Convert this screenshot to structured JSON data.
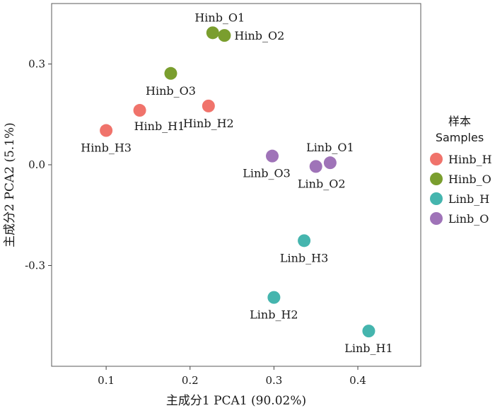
{
  "chart_data": {
    "type": "scatter",
    "title": "",
    "xlabel": "主成分1  PCA1 (90.02%)",
    "ylabel": "主成分2  PCA2 (5.1%)",
    "xlim": [
      0.035,
      0.475
    ],
    "ylim": [
      -0.6,
      0.48
    ],
    "xticks": [
      0.1,
      0.2,
      0.3,
      0.4
    ],
    "xtick_labels": [
      "0.1",
      "0.2",
      "0.3",
      "0.4"
    ],
    "yticks": [
      0.3,
      0.0,
      -0.3
    ],
    "ytick_labels": [
      "0.3",
      "0.0",
      "-0.3"
    ],
    "grid": false,
    "legend": {
      "position": "right",
      "title_line1": "样本",
      "title_line2": "Samples",
      "entries": [
        {
          "name": "Hinb_H",
          "color": "#F0736B"
        },
        {
          "name": "Hinb_O",
          "color": "#7A9E2E"
        },
        {
          "name": "Linb_H",
          "color": "#45B5AE"
        },
        {
          "name": "Linb_O",
          "color": "#9F73B8"
        }
      ]
    },
    "series": [
      {
        "name": "Hinb_H",
        "color": "#F0736B",
        "points": [
          {
            "label": "Hinb_H1",
            "x": 0.14,
            "y": 0.162,
            "label_pos": "below-right"
          },
          {
            "label": "Hinb_H2",
            "x": 0.222,
            "y": 0.175,
            "label_pos": "below"
          },
          {
            "label": "Hinb_H3",
            "x": 0.1,
            "y": 0.102,
            "label_pos": "below"
          }
        ]
      },
      {
        "name": "Hinb_O",
        "color": "#7A9E2E",
        "points": [
          {
            "label": "Hinb_O1",
            "x": 0.227,
            "y": 0.393,
            "label_pos": "above"
          },
          {
            "label": "Hinb_O2",
            "x": 0.241,
            "y": 0.385,
            "label_pos": "right"
          },
          {
            "label": "Hinb_O3",
            "x": 0.177,
            "y": 0.272,
            "label_pos": "below"
          }
        ]
      },
      {
        "name": "Linb_H",
        "color": "#45B5AE",
        "points": [
          {
            "label": "Linb_H1",
            "x": 0.413,
            "y": -0.495,
            "label_pos": "below"
          },
          {
            "label": "Linb_H2",
            "x": 0.3,
            "y": -0.395,
            "label_pos": "below"
          },
          {
            "label": "Linb_H3",
            "x": 0.336,
            "y": -0.226,
            "label_pos": "below"
          }
        ]
      },
      {
        "name": "Linb_O",
        "color": "#9F73B8",
        "points": [
          {
            "label": "Linb_O1",
            "x": 0.367,
            "y": 0.006,
            "label_pos": "above"
          },
          {
            "label": "Linb_O2",
            "x": 0.35,
            "y": -0.005,
            "label_pos": "below"
          },
          {
            "label": "Linb_O3",
            "x": 0.298,
            "y": 0.026,
            "label_pos": "below"
          }
        ]
      }
    ]
  }
}
